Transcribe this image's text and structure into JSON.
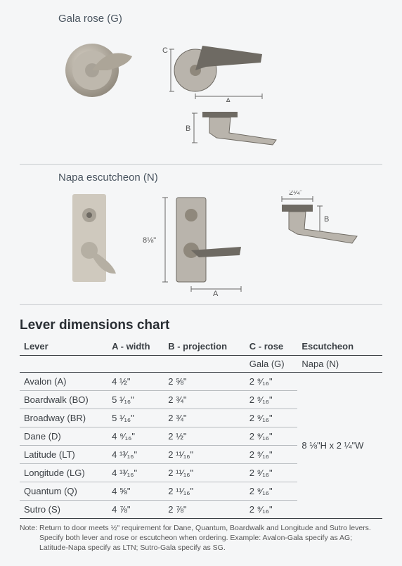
{
  "products": {
    "gala": {
      "label": "Gala rose (G)"
    },
    "napa": {
      "label": "Napa escutcheon (N)"
    }
  },
  "diagram_labels": {
    "A": "A",
    "B": "B",
    "C": "C",
    "napa_height": "8⅛\"",
    "napa_width": "2¼\""
  },
  "chart": {
    "title": "Lever dimensions chart",
    "columns": [
      "Lever",
      "A - width",
      "B - projection",
      "C - rose",
      "Escutcheon"
    ],
    "subheader": {
      "crose": "Gala (G)",
      "escutcheon": "Napa (N)"
    },
    "rows": [
      {
        "lever": "Avalon (A)",
        "a": "4 ½\"",
        "b": "2 ⅝\"",
        "c": "2 ⁹⁄₁₆\""
      },
      {
        "lever": "Boardwalk (BO)",
        "a": "5 ¹⁄₁₆\"",
        "b": "2 ¾\"",
        "c": "2 ⁹⁄₁₆\""
      },
      {
        "lever": "Broadway (BR)",
        "a": "5 ¹⁄₁₆\"",
        "b": "2 ¾\"",
        "c": "2 ⁹⁄₁₆\""
      },
      {
        "lever": "Dane (D)",
        "a": "4 ⁹⁄₁₆\"",
        "b": "2 ½\"",
        "c": "2 ⁹⁄₁₆\""
      },
      {
        "lever": "Latitude (LT)",
        "a": "4 ¹³⁄₁₆\"",
        "b": "2 ¹¹⁄₁₆\"",
        "c": "2 ⁹⁄₁₆\""
      },
      {
        "lever": "Longitude (LG)",
        "a": "4 ¹³⁄₁₆\"",
        "b": "2 ¹¹⁄₁₆\"",
        "c": "2 ⁹⁄₁₆\""
      },
      {
        "lever": "Quantum (Q)",
        "a": "4 ⅝\"",
        "b": "2 ¹¹⁄₁₆\"",
        "c": "2 ⁹⁄₁₆\""
      },
      {
        "lever": "Sutro (S)",
        "a": "4 ⅞\"",
        "b": "2 ⅞\"",
        "c": "2 ⁹⁄₁₆\""
      }
    ],
    "escutcheon_value": "8 ⅛\"H x 2 ¼\"W"
  },
  "note": {
    "prefix": "Note:",
    "line1": "Return to door meets ½\" requirement for Dane, Quantum, Boardwalk and Longitude and Sutro levers.",
    "line2": "Specify both lever and rose or escutcheon when ordering. Example: Avalon-Gala specify as AG; Latitude-Napa specify as LTN; Sutro-Gala specify as SG."
  },
  "style": {
    "bg": "#f5f6f7",
    "text": "#333",
    "header_border": "#3a3f44",
    "row_border": "#b8bcc0"
  }
}
